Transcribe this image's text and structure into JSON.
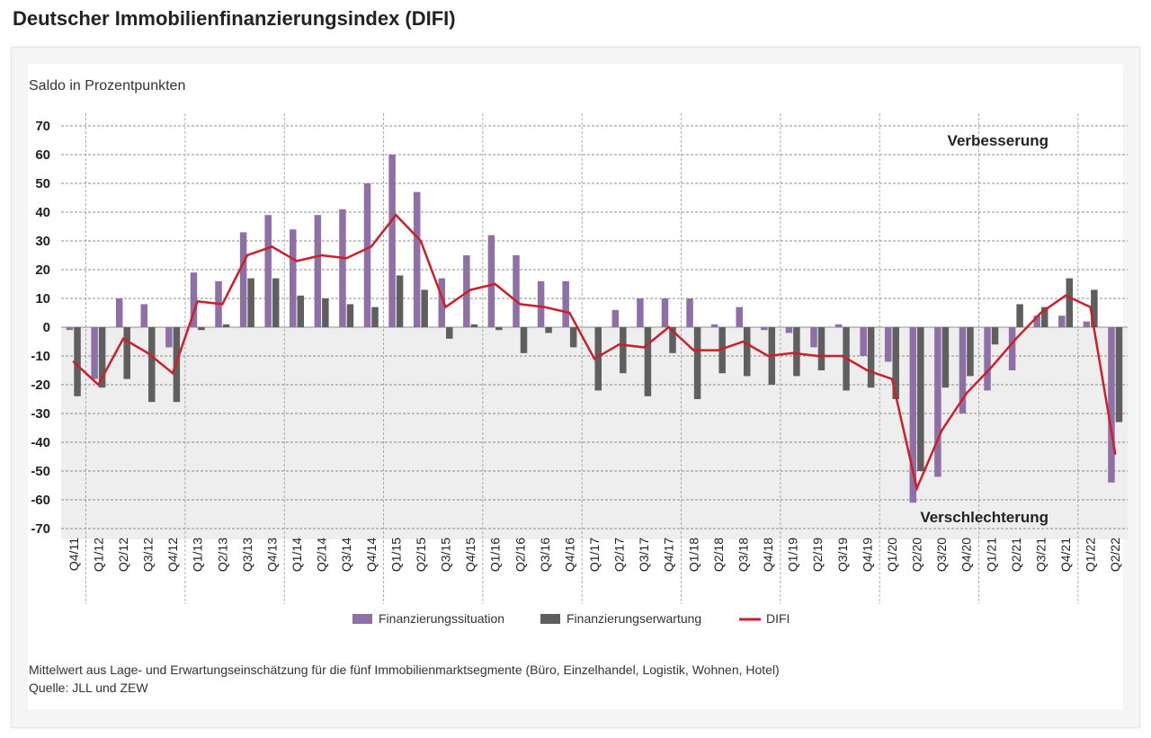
{
  "page": {
    "title": "Deutscher Immobilienfinanzierungsindex (DIFI)",
    "footnote": "Mittelwert aus Lage- und Erwartungseinschätzung für die fünf Immobilienmarktsegmente (Büro, Einzelhandel, Logistik, Wohnen, Hotel)",
    "source": "Quelle: JLL und ZEW"
  },
  "colors": {
    "situation": "#8e6fa6",
    "expectation": "#5f5f5f",
    "difi": "#cc1f2a",
    "negative_band": "#eeeeee",
    "grid": "#6b6b6b"
  },
  "chart_data": {
    "type": "bar",
    "title": "Deutscher Immobilienfinanzierungsindex (DIFI)",
    "ylabel": "Saldo in Prozentpunkten",
    "xlabel": "",
    "ylim": [
      -70,
      70
    ],
    "yticks": [
      70,
      60,
      50,
      40,
      30,
      20,
      10,
      0,
      -10,
      -20,
      -30,
      -40,
      -50,
      -60,
      -70
    ],
    "annotations": {
      "top": "Verbesserung",
      "bottom": "Verschlechterung"
    },
    "legend_position": "bottom-center",
    "categories": [
      "Q4/11",
      "Q1/12",
      "Q2/12",
      "Q3/12",
      "Q4/12",
      "Q1/13",
      "Q2/13",
      "Q3/13",
      "Q4/13",
      "Q1/14",
      "Q2/14",
      "Q3/14",
      "Q4/14",
      "Q1/15",
      "Q2/15",
      "Q3/15",
      "Q4/15",
      "Q1/16",
      "Q2/16",
      "Q3/16",
      "Q4/16",
      "Q1/17",
      "Q2/17",
      "Q3/17",
      "Q4/17",
      "Q1/18",
      "Q2/18",
      "Q3/18",
      "Q4/18",
      "Q1/19",
      "Q2/19",
      "Q3/19",
      "Q4/19",
      "Q1/20",
      "Q2/20",
      "Q3/20",
      "Q4/20",
      "Q1/21",
      "Q2/21",
      "Q3/21",
      "Q4/21",
      "Q1/22",
      "Q2/22"
    ],
    "series": [
      {
        "name": "Finanzierungssituation",
        "type": "bar",
        "values": [
          -1,
          -18,
          10,
          8,
          -7,
          19,
          16,
          33,
          39,
          34,
          39,
          41,
          50,
          60,
          47,
          17,
          25,
          32,
          25,
          16,
          16,
          0,
          6,
          10,
          10,
          10,
          1,
          7,
          -1,
          -2,
          -7,
          1,
          -10,
          -12,
          -61,
          -52,
          -30,
          -22,
          -15,
          4,
          4,
          2,
          -54
        ]
      },
      {
        "name": "Finanzierungserwartung",
        "type": "bar",
        "values": [
          -24,
          -21,
          -18,
          -26,
          -26,
          -1,
          1,
          17,
          17,
          11,
          10,
          8,
          7,
          18,
          13,
          -4,
          1,
          -1,
          -9,
          -2,
          -7,
          -22,
          -16,
          -24,
          -9,
          -25,
          -16,
          -17,
          -20,
          -17,
          -15,
          -22,
          -21,
          -25,
          -50,
          -21,
          -17,
          -6,
          8,
          7,
          17,
          13,
          -33
        ]
      },
      {
        "name": "DIFI",
        "type": "line",
        "values": [
          -12,
          -20,
          -4,
          -9,
          -16,
          9,
          8,
          25,
          28,
          23,
          25,
          24,
          28,
          39,
          30,
          7,
          13,
          15,
          8,
          7,
          5,
          -11,
          -6,
          -7,
          0,
          -8,
          -8,
          -5,
          -10,
          -9,
          -10,
          -10,
          -15,
          -18,
          -56,
          -36,
          -23,
          -14,
          -4,
          5,
          11,
          7,
          -44
        ]
      }
    ]
  }
}
